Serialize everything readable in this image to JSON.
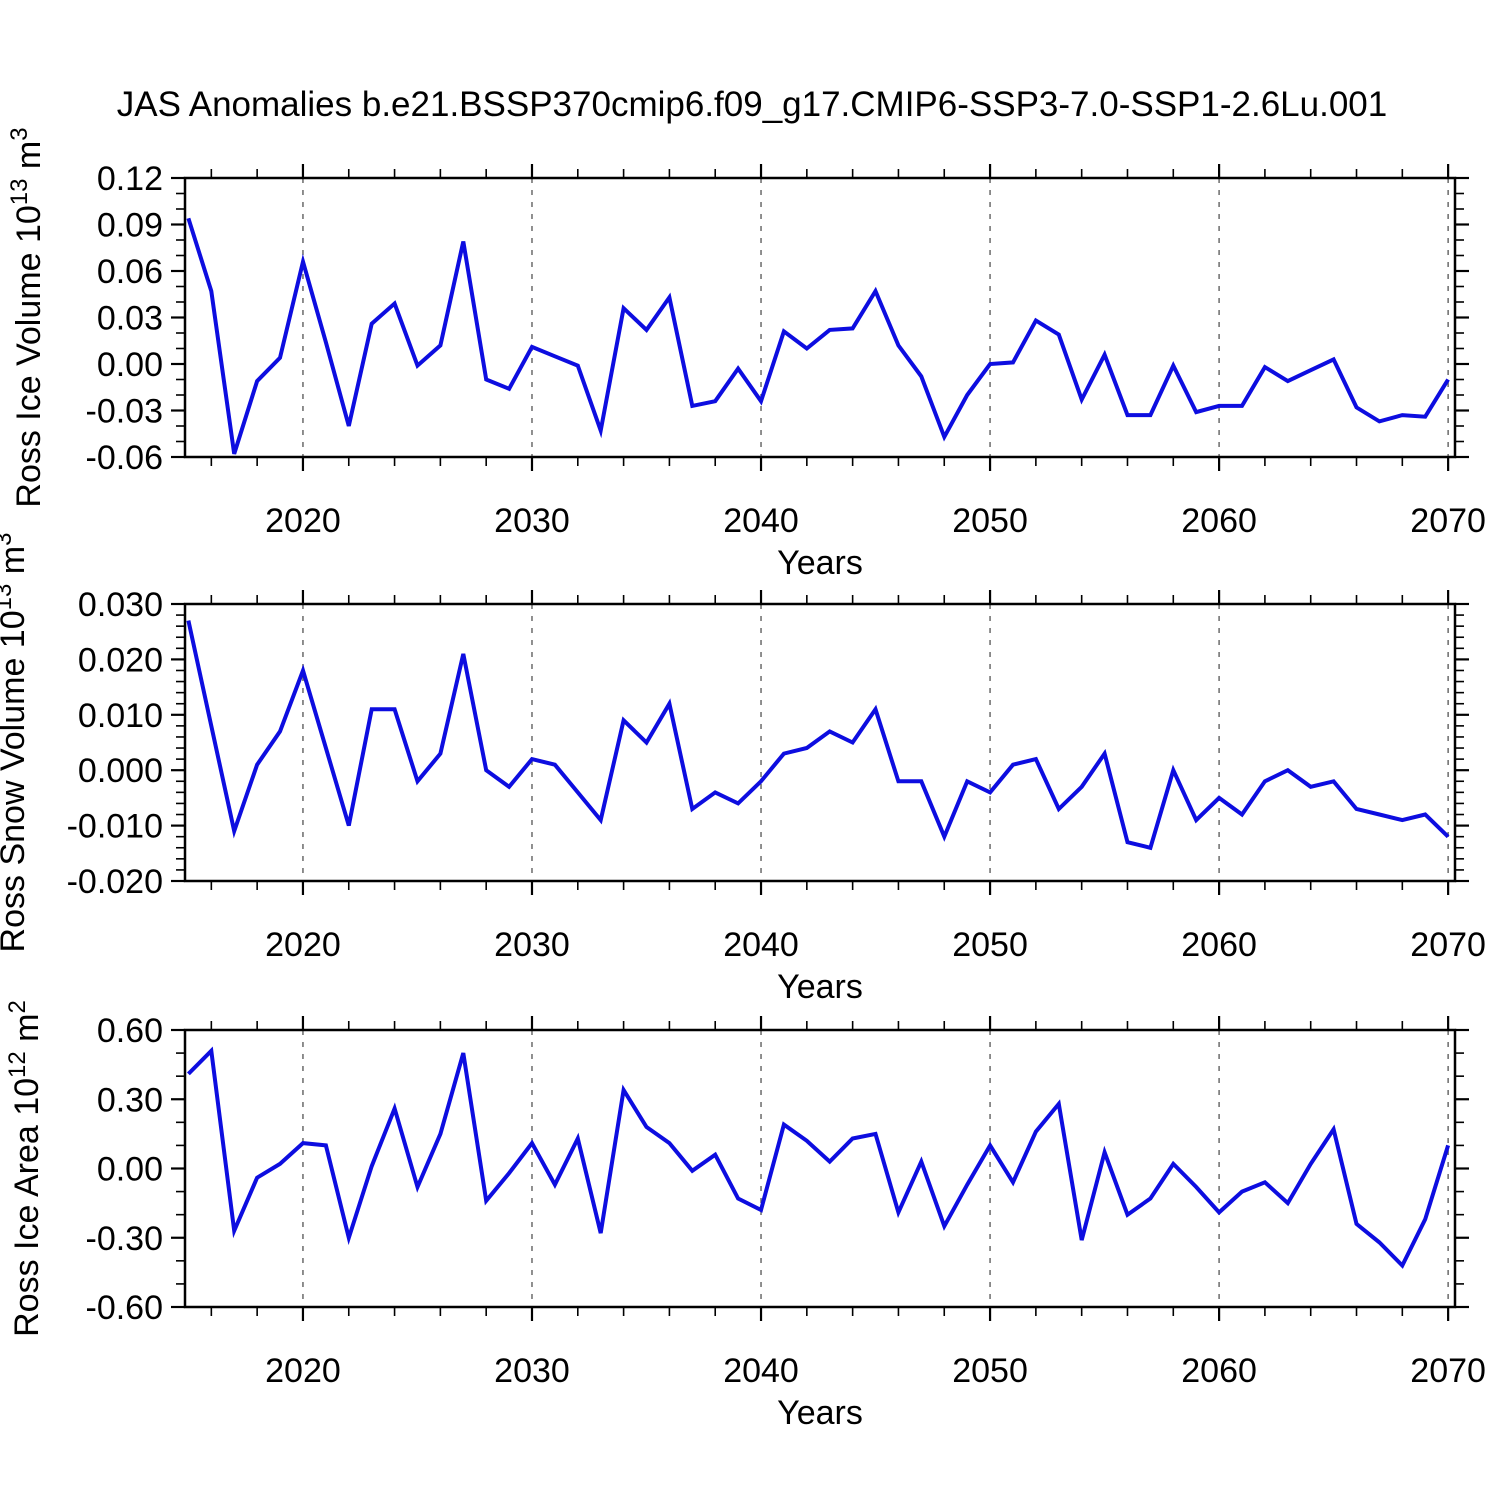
{
  "title": "JAS Anomalies b.e21.BSSP370cmip6.f09_g17.CMIP6-SSP3-7.0-SSP1-2.6Lu.001",
  "colors": {
    "line": "#0d0de0",
    "grid": "#6b6b6b",
    "frame": "#000000",
    "text": "#000000",
    "background": "#ffffff"
  },
  "x_axis": {
    "label": "Years",
    "xlim": [
      2014.85,
      2070.3
    ],
    "major_ticks": [
      2020,
      2030,
      2040,
      2050,
      2060,
      2070
    ],
    "tick_labels": [
      "2020",
      "2030",
      "2040",
      "2050",
      "2060",
      "2070"
    ],
    "minor_step": 2,
    "grid": "vertical-dashed"
  },
  "chart_data": [
    {
      "type": "line",
      "name": "ross-ice-volume",
      "title": "",
      "xlabel": "Years",
      "ylabel": "Ross Ice Volume 10^13 m^3",
      "ylabel_parts": [
        {
          "t": "Ross Ice Volume 10"
        },
        {
          "t": "13",
          "sup": true
        },
        {
          "t": " m"
        },
        {
          "t": "3",
          "sup": true
        }
      ],
      "ylim": [
        -0.06,
        0.12
      ],
      "yticks": [
        -0.06,
        -0.03,
        0.0,
        0.03,
        0.06,
        0.09,
        0.12
      ],
      "ytick_labels": [
        "-0.06",
        "-0.03",
        "0.00",
        "0.03",
        "0.06",
        "0.09",
        "0.12"
      ],
      "y_minor_step": 0.01,
      "x": [
        2015,
        2016,
        2017,
        2018,
        2019,
        2020,
        2021,
        2022,
        2023,
        2024,
        2025,
        2026,
        2027,
        2028,
        2029,
        2030,
        2031,
        2032,
        2033,
        2034,
        2035,
        2036,
        2037,
        2038,
        2039,
        2040,
        2041,
        2042,
        2043,
        2044,
        2045,
        2046,
        2047,
        2048,
        2049,
        2050,
        2051,
        2052,
        2053,
        2054,
        2055,
        2056,
        2057,
        2058,
        2059,
        2060,
        2061,
        2062,
        2063,
        2064,
        2065,
        2066,
        2067,
        2068,
        2069,
        2070
      ],
      "values": [
        0.094,
        0.047,
        -0.058,
        -0.011,
        0.004,
        0.066,
        0.014,
        -0.04,
        0.026,
        0.039,
        -0.001,
        0.012,
        0.079,
        -0.01,
        -0.016,
        0.011,
        0.005,
        -0.001,
        -0.043,
        0.036,
        0.022,
        0.043,
        -0.027,
        -0.024,
        -0.003,
        -0.024,
        0.021,
        0.01,
        0.022,
        0.023,
        0.047,
        0.012,
        -0.008,
        -0.047,
        -0.02,
        0.0,
        0.001,
        0.028,
        0.019,
        -0.023,
        0.006,
        -0.033,
        -0.033,
        -0.001,
        -0.031,
        -0.027,
        -0.027,
        -0.002,
        -0.011,
        -0.004,
        0.003,
        -0.028,
        -0.037,
        -0.033,
        -0.034,
        -0.01
      ]
    },
    {
      "type": "line",
      "name": "ross-snow-volume",
      "title": "",
      "xlabel": "Years",
      "ylabel": "Ross Snow Volume 10^13 m^3",
      "ylabel_parts": [
        {
          "t": "Ross Snow Volume 10"
        },
        {
          "t": "13",
          "sup": true
        },
        {
          "t": " m"
        },
        {
          "t": "3",
          "sup": true
        }
      ],
      "ylim": [
        -0.02,
        0.03
      ],
      "yticks": [
        -0.02,
        -0.01,
        0.0,
        0.01,
        0.02,
        0.03
      ],
      "ytick_labels": [
        "-0.020",
        "-0.010",
        "0.000",
        "0.010",
        "0.020",
        "0.030"
      ],
      "y_minor_step": 0.002,
      "x": [
        2015,
        2016,
        2017,
        2018,
        2019,
        2020,
        2021,
        2022,
        2023,
        2024,
        2025,
        2026,
        2027,
        2028,
        2029,
        2030,
        2031,
        2032,
        2033,
        2034,
        2035,
        2036,
        2037,
        2038,
        2039,
        2040,
        2041,
        2042,
        2043,
        2044,
        2045,
        2046,
        2047,
        2048,
        2049,
        2050,
        2051,
        2052,
        2053,
        2054,
        2055,
        2056,
        2057,
        2058,
        2059,
        2060,
        2061,
        2062,
        2063,
        2064,
        2065,
        2066,
        2067,
        2068,
        2069,
        2070
      ],
      "values": [
        0.027,
        0.008,
        -0.011,
        0.001,
        0.007,
        0.018,
        0.004,
        -0.01,
        0.011,
        0.011,
        -0.002,
        0.003,
        0.021,
        0.0,
        -0.003,
        0.002,
        0.001,
        -0.004,
        -0.009,
        0.009,
        0.005,
        0.012,
        -0.007,
        -0.004,
        -0.006,
        -0.002,
        0.003,
        0.004,
        0.007,
        0.005,
        0.011,
        -0.002,
        -0.002,
        -0.012,
        -0.002,
        -0.004,
        0.001,
        0.002,
        -0.007,
        -0.003,
        0.003,
        -0.013,
        -0.014,
        0.0,
        -0.009,
        -0.005,
        -0.008,
        -0.002,
        0.0,
        -0.003,
        -0.002,
        -0.007,
        -0.008,
        -0.009,
        -0.008,
        -0.012
      ]
    },
    {
      "type": "line",
      "name": "ross-ice-area",
      "title": "",
      "xlabel": "Years",
      "ylabel": "Ross Ice Area 10^12 m^2",
      "ylabel_parts": [
        {
          "t": "Ross Ice Area 10"
        },
        {
          "t": "12",
          "sup": true
        },
        {
          "t": " m"
        },
        {
          "t": "2",
          "sup": true
        }
      ],
      "ylim": [
        -0.6,
        0.6
      ],
      "yticks": [
        -0.6,
        -0.3,
        0.0,
        0.3,
        0.6
      ],
      "ytick_labels": [
        "-0.60",
        "-0.30",
        "0.00",
        "0.30",
        "0.60"
      ],
      "y_minor_step": 0.1,
      "x": [
        2015,
        2016,
        2017,
        2018,
        2019,
        2020,
        2021,
        2022,
        2023,
        2024,
        2025,
        2026,
        2027,
        2028,
        2029,
        2030,
        2031,
        2032,
        2033,
        2034,
        2035,
        2036,
        2037,
        2038,
        2039,
        2040,
        2041,
        2042,
        2043,
        2044,
        2045,
        2046,
        2047,
        2048,
        2049,
        2050,
        2051,
        2052,
        2053,
        2054,
        2055,
        2056,
        2057,
        2058,
        2059,
        2060,
        2061,
        2062,
        2063,
        2064,
        2065,
        2066,
        2067,
        2068,
        2069,
        2070
      ],
      "values": [
        0.41,
        0.51,
        -0.27,
        -0.04,
        0.02,
        0.11,
        0.1,
        -0.3,
        0.01,
        0.26,
        -0.08,
        0.15,
        0.5,
        -0.14,
        -0.02,
        0.11,
        -0.07,
        0.13,
        -0.28,
        0.34,
        0.18,
        0.11,
        -0.01,
        0.06,
        -0.13,
        -0.18,
        0.19,
        0.12,
        0.03,
        0.13,
        0.15,
        -0.19,
        0.03,
        -0.25,
        -0.07,
        0.1,
        -0.06,
        0.16,
        0.28,
        -0.31,
        0.07,
        -0.2,
        -0.13,
        0.02,
        -0.08,
        -0.19,
        -0.1,
        -0.06,
        -0.15,
        0.02,
        0.17,
        -0.24,
        -0.32,
        -0.42,
        -0.22,
        0.1
      ]
    }
  ]
}
